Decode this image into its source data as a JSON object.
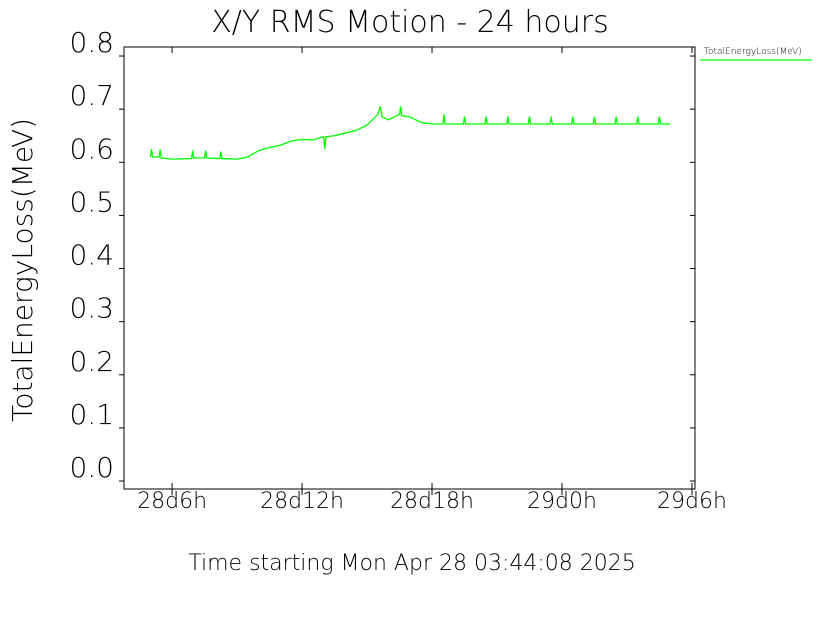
{
  "chart_data": {
    "type": "line",
    "title": "X/Y RMS Motion - 24 hours",
    "xlabel": "Time starting Mon Apr 28 03:44:08 2025",
    "ylabel": "TotalEnergyLoss(MeV)",
    "xlim": [
      3.78,
      30.14
    ],
    "xticks": [
      {
        "value": 6,
        "label": "28d6h"
      },
      {
        "value": 12,
        "label": "28d12h"
      },
      {
        "value": 18,
        "label": "28d18h"
      },
      {
        "value": 24,
        "label": "29d0h"
      },
      {
        "value": 30,
        "label": "29d6h"
      }
    ],
    "ylim": [
      -0.015,
      0.817
    ],
    "yticks": [
      {
        "value": 0,
        "label": "0.0"
      },
      0.1,
      0.2,
      0.3,
      0.4,
      0.5,
      0.6,
      0.7,
      0.8
    ],
    "legend": "top-right",
    "series": [
      {
        "name": "TotalEnergyLoss(MeV)",
        "color": "#00ff00",
        "x": [
          5.0,
          5.05,
          5.1,
          5.4,
          5.45,
          5.5,
          6.0,
          6.9,
          6.95,
          7.0,
          7.5,
          7.55,
          7.6,
          8.2,
          8.25,
          8.3,
          9.0,
          9.5,
          10.0,
          10.5,
          11.0,
          11.5,
          12.0,
          12.5,
          13.0,
          13.05,
          13.1,
          13.5,
          14.0,
          14.5,
          15.0,
          15.5,
          15.6,
          15.7,
          16.0,
          16.5,
          16.55,
          16.6,
          17.0,
          17.5,
          18.0,
          18.5,
          18.55,
          18.6,
          19.45,
          19.5,
          19.55,
          20.45,
          20.5,
          20.55,
          21.45,
          21.5,
          21.55,
          22.45,
          22.5,
          22.55,
          23.45,
          23.5,
          23.55,
          24.45,
          24.5,
          24.55,
          25.45,
          25.5,
          25.55,
          26.45,
          26.5,
          26.55,
          27.45,
          27.5,
          27.55,
          28.45,
          28.5,
          28.55,
          29.0
        ],
        "values": [
          0.61,
          0.625,
          0.61,
          0.61,
          0.624,
          0.608,
          0.606,
          0.607,
          0.622,
          0.608,
          0.608,
          0.622,
          0.608,
          0.607,
          0.62,
          0.607,
          0.606,
          0.61,
          0.622,
          0.628,
          0.632,
          0.64,
          0.643,
          0.642,
          0.648,
          0.625,
          0.648,
          0.65,
          0.655,
          0.66,
          0.67,
          0.69,
          0.705,
          0.685,
          0.68,
          0.69,
          0.705,
          0.688,
          0.685,
          0.675,
          0.672,
          0.672,
          0.69,
          0.672,
          0.672,
          0.686,
          0.672,
          0.672,
          0.686,
          0.672,
          0.672,
          0.686,
          0.672,
          0.672,
          0.686,
          0.672,
          0.672,
          0.686,
          0.672,
          0.672,
          0.686,
          0.672,
          0.672,
          0.686,
          0.672,
          0.672,
          0.686,
          0.672,
          0.672,
          0.686,
          0.672,
          0.672,
          0.686,
          0.672,
          0.672
        ]
      }
    ]
  }
}
